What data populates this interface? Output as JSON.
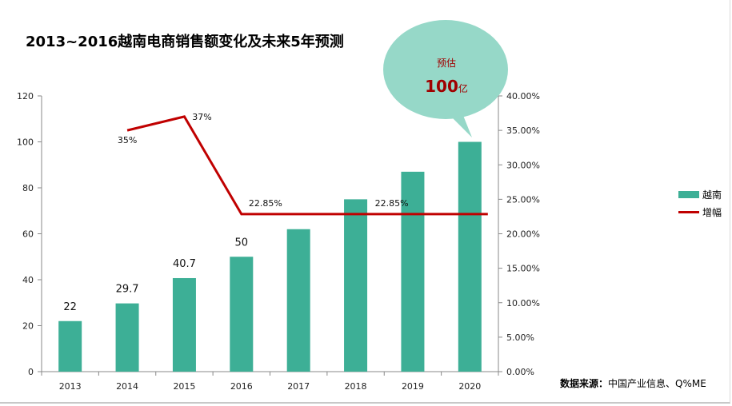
{
  "title": "2013~2016越南电商销售额变化及未来5年预测",
  "source": {
    "label": "数据来源：",
    "text": "中国产业信息、Q%ME"
  },
  "callout": {
    "top": "预估",
    "value": "100",
    "unit": "亿"
  },
  "colors": {
    "bar": "#3daf96",
    "line": "#c00000",
    "callout": "#96d8c8",
    "callout_text": "#a00000"
  },
  "chart_data": {
    "type": "bar",
    "categories": [
      "2013",
      "2014",
      "2015",
      "2016",
      "2017",
      "2018",
      "2019",
      "2020"
    ],
    "series": [
      {
        "name": "越南",
        "type": "bar",
        "axis": "left",
        "values": [
          22,
          29.7,
          40.7,
          50,
          62,
          75,
          87,
          100
        ]
      },
      {
        "name": "增幅",
        "type": "line",
        "axis": "right",
        "values": [
          null,
          0.35,
          0.37,
          0.2285,
          0.2285,
          0.2285,
          0.2285,
          0.2285
        ]
      }
    ],
    "bar_labels": [
      "22",
      "29.7",
      "40.7",
      "50",
      "",
      "",
      "",
      ""
    ],
    "line_labels": [
      {
        "index": 1,
        "text": "35%"
      },
      {
        "index": 2,
        "text": "37%"
      },
      {
        "index": 3,
        "text": "22.85%"
      },
      {
        "index": 5,
        "text": "22.85%"
      }
    ],
    "y_left": {
      "min": 0,
      "max": 120,
      "ticks": [
        "0",
        "20",
        "40",
        "60",
        "80",
        "100",
        "120"
      ]
    },
    "y_right": {
      "min": 0,
      "max": 0.4,
      "ticks": [
        "0.00%",
        "5.00%",
        "10.00%",
        "15.00%",
        "20.00%",
        "25.00%",
        "30.00%",
        "35.00%",
        "40.00%"
      ]
    },
    "legend": [
      "越南",
      "增幅"
    ],
    "legend_position": "right",
    "grid": false
  }
}
